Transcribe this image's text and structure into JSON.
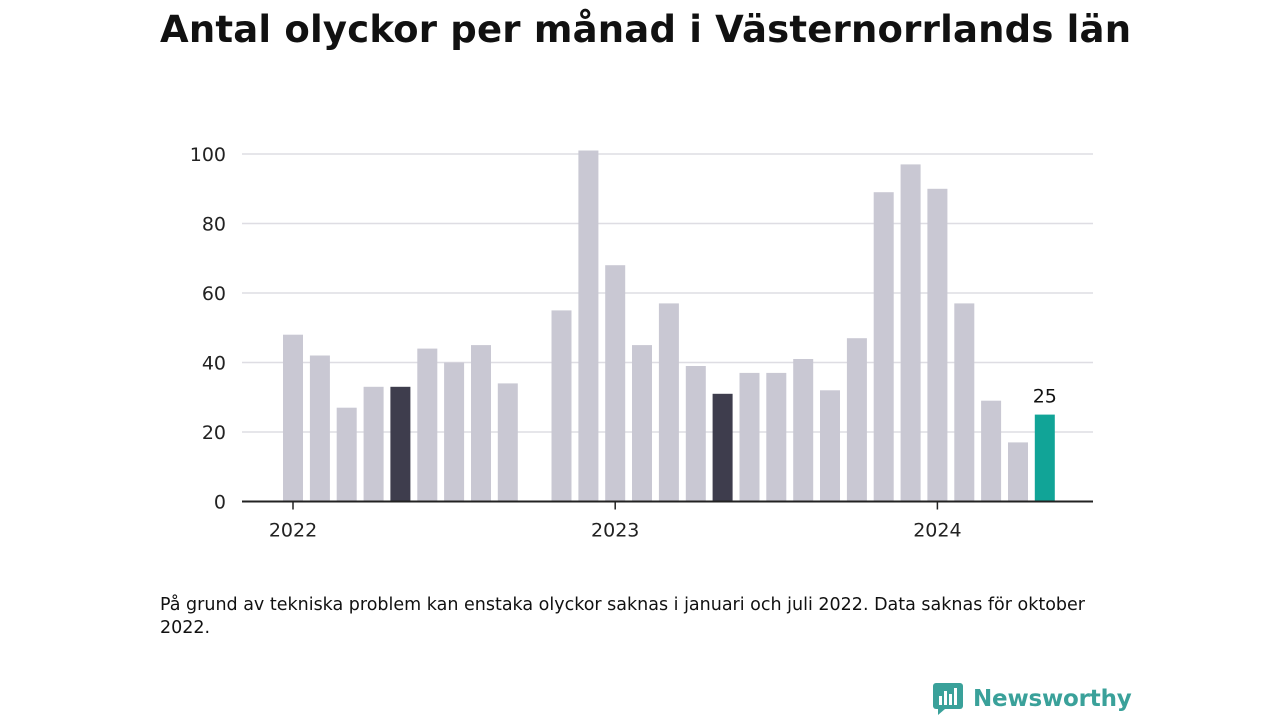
{
  "chart_data": {
    "type": "bar",
    "title": "Antal olyckor per månad i Västernorrlands län",
    "note": "På grund av tekniska problem kan enstaka olyckor saknas i januari och juli 2022. Data saknas för oktober 2022.",
    "x_tick_labels": [
      "2022",
      "2023",
      "2024"
    ],
    "y_ticks": [
      0,
      20,
      40,
      60,
      80,
      100
    ],
    "ylim": [
      0,
      105
    ],
    "grid": "horizontal",
    "months": [
      "2022-01",
      "2022-02",
      "2022-03",
      "2022-04",
      "2022-05",
      "2022-06",
      "2022-07",
      "2022-08",
      "2022-09",
      "2022-10",
      "2022-11",
      "2022-12",
      "2023-01",
      "2023-02",
      "2023-03",
      "2023-04",
      "2023-05",
      "2023-06",
      "2023-07",
      "2023-08",
      "2023-09",
      "2023-10",
      "2023-11",
      "2023-12",
      "2024-01",
      "2024-02",
      "2024-03",
      "2024-04",
      "2024-05"
    ],
    "values": [
      48,
      42,
      27,
      33,
      33,
      44,
      40,
      45,
      34,
      null,
      55,
      101,
      68,
      45,
      57,
      39,
      31,
      37,
      37,
      41,
      32,
      47,
      89,
      97,
      90,
      57,
      29,
      17,
      25
    ],
    "highlight": {
      "2022-05": "dark",
      "2023-05": "dark",
      "2024-05": "accent"
    },
    "last_value_label": "25",
    "colors": {
      "default": "#c9c8d3",
      "dark": "#3e3d4d",
      "accent": "#11a497"
    }
  },
  "brand": {
    "name": "Newsworthy",
    "icon": "newsworthy-logo-icon",
    "color": "#3aa19a"
  }
}
